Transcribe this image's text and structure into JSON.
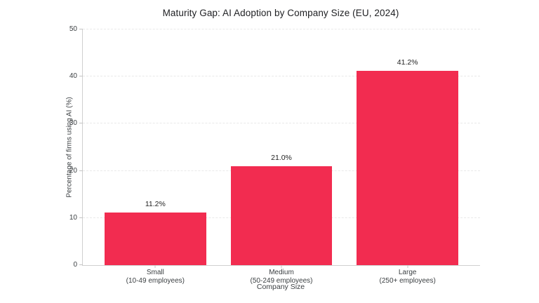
{
  "chart_data": {
    "type": "bar",
    "title": "Maturity Gap: AI Adoption by Company Size (EU, 2024)",
    "xlabel": "Company Size",
    "ylabel": "Percentage of firms using AI (%)",
    "categories": [
      "Small",
      "Medium",
      "Large"
    ],
    "category_sublabels": [
      "(10-49 employees)",
      "(50-249 employees)",
      "(250+ employees)"
    ],
    "values": [
      11.2,
      21.0,
      41.2
    ],
    "value_labels": [
      "11.2%",
      "21.0%",
      "41.2%"
    ],
    "ylim": [
      0,
      50
    ],
    "yticks": [
      0,
      10,
      20,
      30,
      40,
      50
    ],
    "grid": "horizontal-dashed",
    "legend": "none",
    "bar_color": "#f22c50"
  },
  "colors": {
    "background": "#ffffff",
    "spine": "#cfcfcf",
    "gridline": "#e9e9e9",
    "tick_text": "#3c4043",
    "title_text": "#202124"
  }
}
